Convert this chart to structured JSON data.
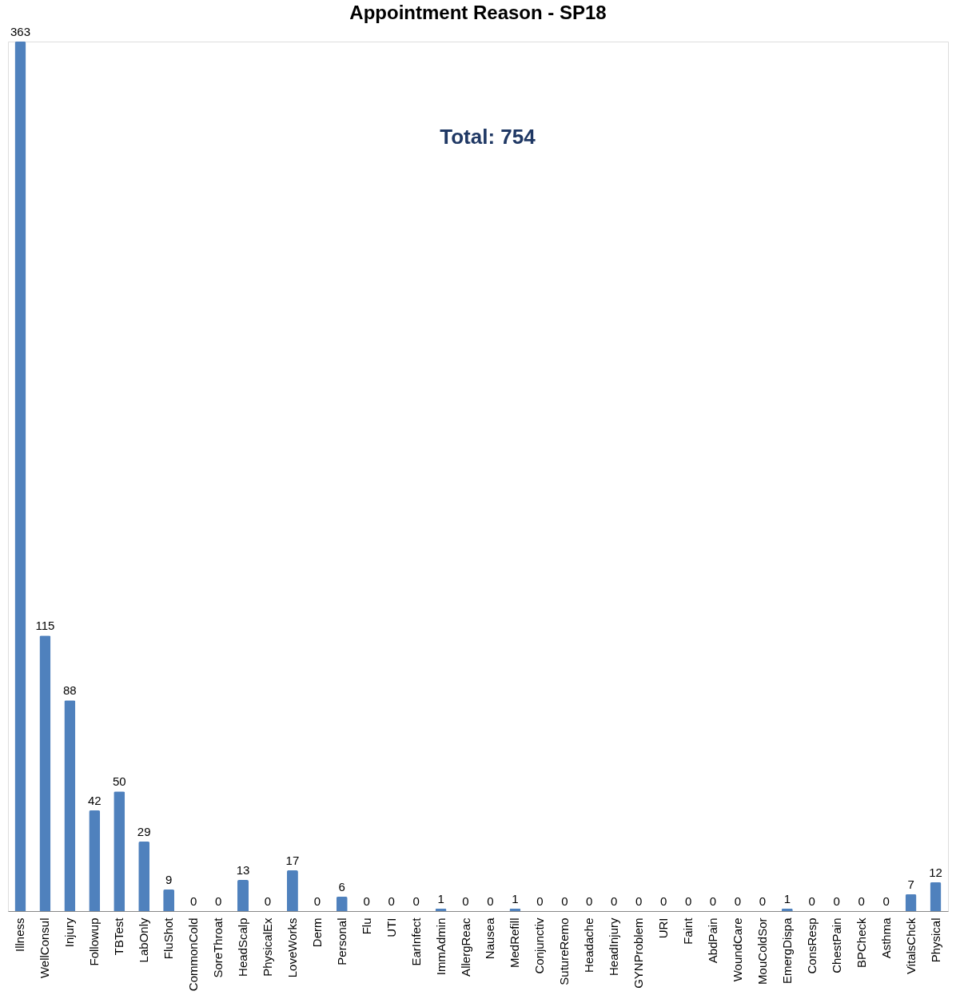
{
  "chart_data": {
    "type": "bar",
    "title": "Appointment Reason - SP18",
    "annotations": [
      "Total:  754"
    ],
    "categories": [
      "Illness",
      "WellConsul",
      "Injury",
      "Followup",
      "TBTest",
      "LabOnly",
      "FluShot",
      "CommonCold",
      "SoreThroat",
      "HeadScalp",
      "PhysicalEx",
      "LoveWorks",
      "Derm",
      "Personal",
      "Flu",
      "UTI",
      "EarInfect",
      "ImmAdmin",
      "AllergReac",
      "Nausea",
      "MedRefill",
      "Conjunctiv",
      "SutureRemo",
      "Headache",
      "HeadInjury",
      "GYNProblem",
      "URI",
      "Faint",
      "AbdPain",
      "WoundCare",
      "MouColdSor",
      "EmergDispa",
      "ConsResp",
      "ChestPain",
      "BPCheck",
      "Asthma",
      "VitalsChck",
      "Physical"
    ],
    "values": [
      363,
      115,
      88,
      42,
      50,
      29,
      9,
      0,
      0,
      13,
      0,
      17,
      0,
      6,
      0,
      0,
      0,
      1,
      0,
      0,
      1,
      0,
      0,
      0,
      0,
      0,
      0,
      0,
      0,
      0,
      0,
      1,
      0,
      0,
      0,
      0,
      7,
      12
    ],
    "color": "#4f81bd",
    "data_labels": true,
    "grid": false
  }
}
